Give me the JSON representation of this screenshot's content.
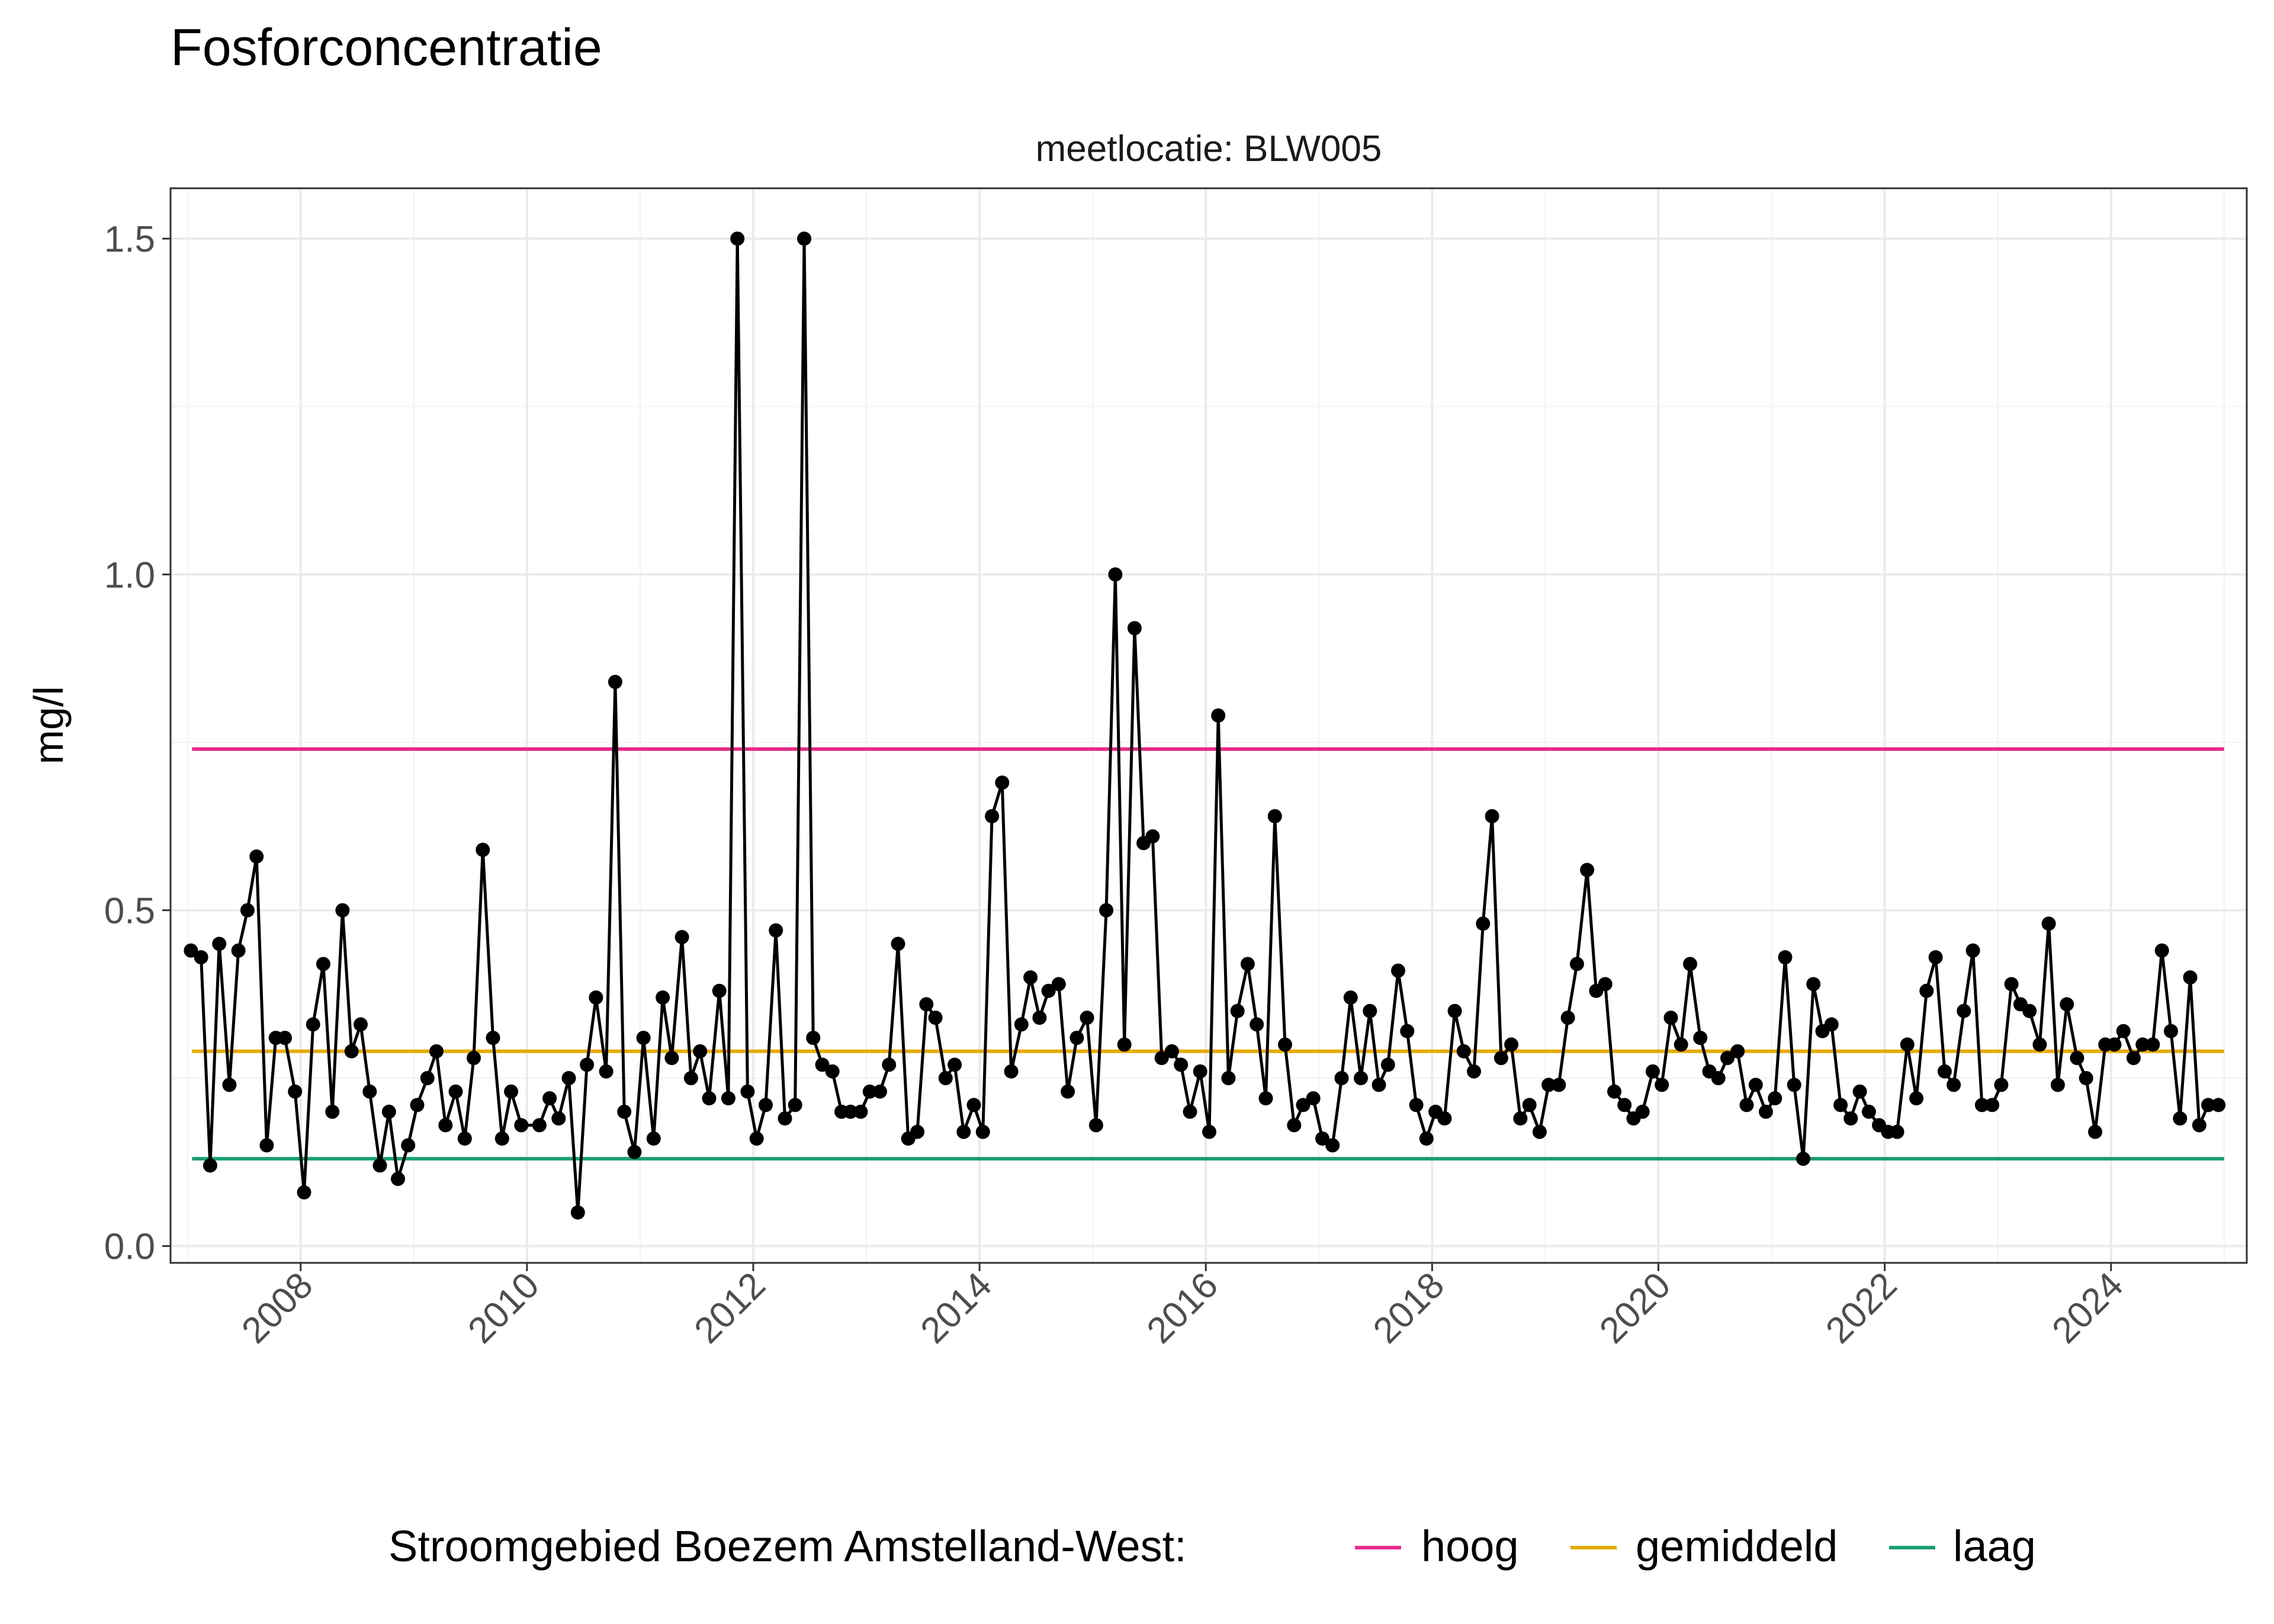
{
  "chart_data": {
    "type": "line",
    "title": "Fosforconcentratie",
    "facet_label": "meetlocatie: BLW005",
    "ylabel": "mg/l",
    "xlabel": "",
    "xlim": [
      2006.85,
      2025.2
    ],
    "ylim": [
      -0.025,
      1.575
    ],
    "x_ticks": [
      "2008",
      "2010",
      "2012",
      "2014",
      "2016",
      "2018",
      "2020",
      "2022",
      "2024"
    ],
    "y_ticks": [
      "0.0",
      "0.5",
      "1.0",
      "1.5"
    ],
    "grid": true,
    "legend": {
      "position": "bottom",
      "title": "Stroomgebied Boezem Amstelland-West:",
      "items": [
        {
          "label": "hoog",
          "color": "#e7298a"
        },
        {
          "label": "gemiddeld",
          "color": "#e6ab02"
        },
        {
          "label": "laag",
          "color": "#1b9e77"
        }
      ]
    },
    "reference_lines": [
      {
        "name": "hoog",
        "value": 0.74,
        "color": "#e7298a",
        "x_from": 2007.04,
        "x_to": 2025.0
      },
      {
        "name": "gemiddeld",
        "value": 0.29,
        "color": "#e6ab02",
        "x_from": 2007.04,
        "x_to": 2025.0
      },
      {
        "name": "laag",
        "value": 0.13,
        "color": "#1b9e77",
        "x_from": 2007.04,
        "x_to": 2025.0
      }
    ],
    "series": [
      {
        "color": "#000000",
        "x": [
          2007.03,
          2007.12,
          2007.2,
          2007.28,
          2007.37,
          2007.45,
          2007.53,
          2007.61,
          2007.7,
          2007.78,
          2007.86,
          2007.95,
          2008.03,
          2008.11,
          2008.2,
          2008.28,
          2008.37,
          2008.45,
          2008.53,
          2008.61,
          2008.7,
          2008.78,
          2008.86,
          2008.95,
          2009.03,
          2009.12,
          2009.2,
          2009.28,
          2009.37,
          2009.45,
          2009.53,
          2009.61,
          2009.7,
          2009.78,
          2009.86,
          2009.95,
          2010.11,
          2010.2,
          2010.28,
          2010.37,
          2010.45,
          2010.53,
          2010.61,
          2010.7,
          2010.78,
          2010.86,
          2010.95,
          2011.03,
          2011.12,
          2011.2,
          2011.28,
          2011.37,
          2011.45,
          2011.53,
          2011.61,
          2011.7,
          2011.78,
          2011.86,
          2011.95,
          2012.03,
          2012.11,
          2012.2,
          2012.28,
          2012.37,
          2012.45,
          2012.53,
          2012.61,
          2012.7,
          2012.78,
          2012.86,
          2012.95,
          2013.03,
          2013.12,
          2013.2,
          2013.28,
          2013.37,
          2013.45,
          2013.53,
          2013.61,
          2013.7,
          2013.78,
          2013.86,
          2013.95,
          2014.03,
          2014.11,
          2014.2,
          2014.28,
          2014.37,
          2014.45,
          2014.53,
          2014.61,
          2014.7,
          2014.78,
          2014.86,
          2014.95,
          2015.03,
          2015.12,
          2015.2,
          2015.28,
          2015.37,
          2015.45,
          2015.53,
          2015.61,
          2015.7,
          2015.78,
          2015.86,
          2015.95,
          2016.03,
          2016.11,
          2016.2,
          2016.28,
          2016.37,
          2016.45,
          2016.53,
          2016.61,
          2016.7,
          2016.78,
          2016.86,
          2016.95,
          2017.03,
          2017.12,
          2017.2,
          2017.28,
          2017.37,
          2017.45,
          2017.53,
          2017.61,
          2017.7,
          2017.78,
          2017.86,
          2017.95,
          2018.03,
          2018.11,
          2018.2,
          2018.28,
          2018.37,
          2018.45,
          2018.53,
          2018.61,
          2018.7,
          2018.78,
          2018.86,
          2018.95,
          2019.03,
          2019.12,
          2019.2,
          2019.28,
          2019.37,
          2019.45,
          2019.53,
          2019.61,
          2019.7,
          2019.78,
          2019.86,
          2019.95,
          2020.03,
          2020.11,
          2020.2,
          2020.28,
          2020.37,
          2020.45,
          2020.53,
          2020.61,
          2020.7,
          2020.78,
          2020.86,
          2020.95,
          2021.03,
          2021.12,
          2021.2,
          2021.28,
          2021.37,
          2021.45,
          2021.53,
          2021.61,
          2021.7,
          2021.78,
          2021.86,
          2021.95,
          2022.03,
          2022.11,
          2022.2,
          2022.28,
          2022.37,
          2022.45,
          2022.53,
          2022.61,
          2022.7,
          2022.78,
          2022.86,
          2022.95,
          2023.03,
          2023.12,
          2023.2,
          2023.28,
          2023.37,
          2023.45,
          2023.53,
          2023.61,
          2023.7,
          2023.78,
          2023.86,
          2023.95,
          2024.03,
          2024.11,
          2024.2,
          2024.28,
          2024.37,
          2024.45,
          2024.53,
          2024.61,
          2024.7,
          2024.78,
          2024.86,
          2024.95
        ],
        "y": [
          0.44,
          0.43,
          0.12,
          0.45,
          0.24,
          0.44,
          0.5,
          0.58,
          0.15,
          0.31,
          0.31,
          0.23,
          0.08,
          0.33,
          0.42,
          0.2,
          0.5,
          0.29,
          0.33,
          0.23,
          0.12,
          0.2,
          0.1,
          0.15,
          0.21,
          0.25,
          0.29,
          0.18,
          0.23,
          0.16,
          0.28,
          0.59,
          0.31,
          0.16,
          0.23,
          0.18,
          0.18,
          0.22,
          0.19,
          0.25,
          0.05,
          0.27,
          0.37,
          0.26,
          0.84,
          0.2,
          0.14,
          0.31,
          0.16,
          0.37,
          0.28,
          0.46,
          0.25,
          0.29,
          0.22,
          0.38,
          0.22,
          1.5,
          0.23,
          0.16,
          0.21,
          0.47,
          0.19,
          0.21,
          1.5,
          0.31,
          0.27,
          0.26,
          0.2,
          0.2,
          0.2,
          0.23,
          0.23,
          0.27,
          0.45,
          0.16,
          0.17,
          0.36,
          0.34,
          0.25,
          0.27,
          0.17,
          0.21,
          0.17,
          0.64,
          0.69,
          0.26,
          0.33,
          0.4,
          0.34,
          0.38,
          0.39,
          0.23,
          0.31,
          0.34,
          0.18,
          0.5,
          1.0,
          0.3,
          0.92,
          0.6,
          0.61,
          0.28,
          0.29,
          0.27,
          0.2,
          0.26,
          0.17,
          0.79,
          0.25,
          0.35,
          0.42,
          0.33,
          0.22,
          0.64,
          0.3,
          0.18,
          0.21,
          0.22,
          0.16,
          0.15,
          0.25,
          0.37,
          0.25,
          0.35,
          0.24,
          0.27,
          0.41,
          0.32,
          0.21,
          0.16,
          0.2,
          0.19,
          0.35,
          0.29,
          0.26,
          0.48,
          0.64,
          0.28,
          0.3,
          0.19,
          0.21,
          0.17,
          0.24,
          0.24,
          0.34,
          0.42,
          0.56,
          0.38,
          0.39,
          0.23,
          0.21,
          0.19,
          0.2,
          0.26,
          0.24,
          0.34,
          0.3,
          0.42,
          0.31,
          0.26,
          0.25,
          0.28,
          0.29,
          0.21,
          0.24,
          0.2,
          0.22,
          0.43,
          0.24,
          0.13,
          0.39,
          0.32,
          0.33,
          0.21,
          0.19,
          0.23,
          0.2,
          0.18,
          0.17,
          0.17,
          0.3,
          0.22,
          0.38,
          0.43,
          0.26,
          0.24,
          0.35,
          0.44,
          0.21,
          0.21,
          0.24,
          0.39,
          0.36,
          0.35,
          0.3,
          0.48,
          0.24,
          0.36,
          0.28,
          0.25,
          0.17,
          0.3,
          0.3,
          0.32,
          0.28,
          0.3,
          0.3,
          0.44,
          0.32,
          0.19,
          0.4,
          0.18,
          0.21,
          0.21
        ]
      }
    ]
  }
}
